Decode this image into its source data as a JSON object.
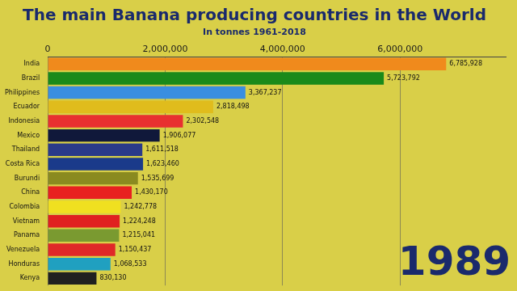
{
  "chart_data": {
    "type": "bar",
    "orientation": "horizontal",
    "title": "The main Banana producing countries in the World",
    "subtitle": "In tonnes 1961-2018",
    "annotations": [
      "1989"
    ],
    "categories": [
      "India",
      "Brazil",
      "Philippines",
      "Ecuador",
      "Indonesia",
      "Mexico",
      "Thailand",
      "Costa Rica",
      "Burundi",
      "China",
      "Colombia",
      "Vietnam",
      "Panama",
      "Venezuela",
      "Honduras",
      "Kenya"
    ],
    "values": [
      6785928,
      5723792,
      3367237,
      2818498,
      2302548,
      1906077,
      1611518,
      1623460,
      1535699,
      1430170,
      1242778,
      1224248,
      1215041,
      1150437,
      1068533,
      830130
    ],
    "value_labels": [
      "6,785,928",
      "5,723,792",
      "3,367,237",
      "2,818,498",
      "2,302,548",
      "1,906,077",
      "1,611,518",
      "1,623,460",
      "1,535,699",
      "1,430,170",
      "1,242,778",
      "1,224,248",
      "1,215,041",
      "1,150,437",
      "1,068,533",
      "830,130"
    ],
    "colors": [
      "#f08a1c",
      "#1a8a1a",
      "#3a8ee0",
      "#e0bc1c",
      "#e83030",
      "#10183a",
      "#2a3a8a",
      "#1a3a8a",
      "#8a8a20",
      "#e82020",
      "#f0e020",
      "#e02020",
      "#7a9a30",
      "#e02828",
      "#20a0c0",
      "#202020"
    ],
    "data_labels": true,
    "grid": true,
    "xlim": [
      0,
      7800000
    ],
    "xticks": [
      0,
      {
        "value": 2000000,
        "label": "2,000,000"
      },
      {
        "value": 4000000,
        "label": "4,000,000"
      },
      {
        "value": 6000000,
        "label": "6,000,000"
      }
    ]
  }
}
